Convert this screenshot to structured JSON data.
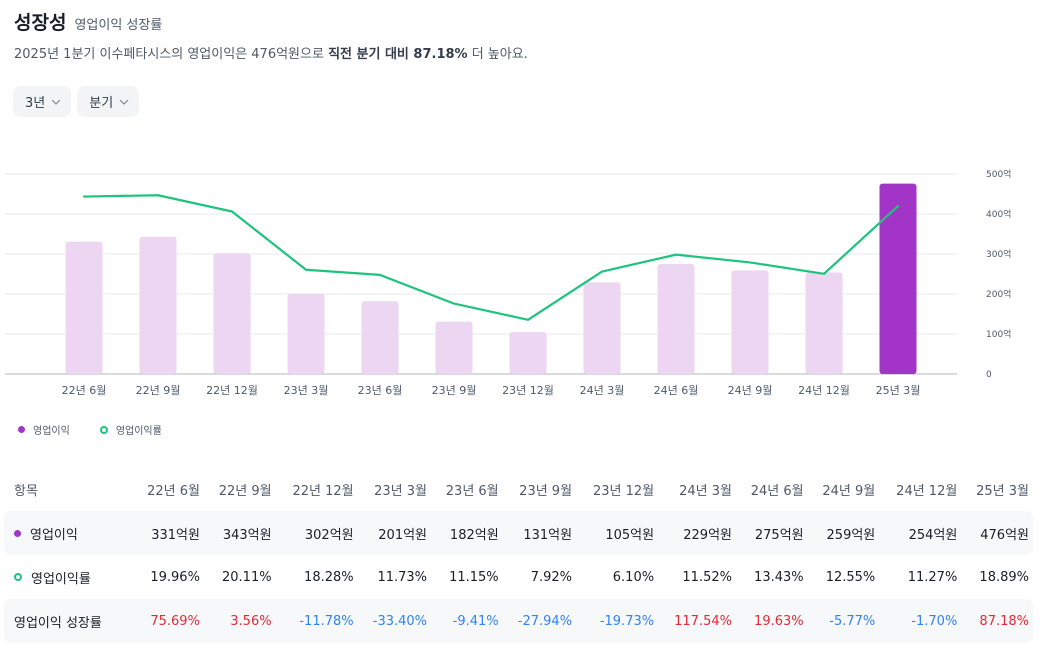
{
  "header": {
    "title": "성장성",
    "subtitle": "영업이익 성장률",
    "summary_prefix": "2025년 1분기 이수페타시스의 영업이익은 476억원으로 ",
    "summary_bold": "직전 분기 대비 87.18%",
    "summary_suffix": " 더 높아요."
  },
  "filters": {
    "period": "3년",
    "unit": "분기"
  },
  "colors": {
    "bar_light": "#ecd6f2",
    "bar_highlight": "#a234c7",
    "line": "#1ec47d",
    "positive": "#e42939",
    "negative": "#3182f6"
  },
  "chart_data": {
    "type": "bar+line",
    "categories": [
      "22년 6월",
      "22년 9월",
      "22년 12월",
      "23년 3월",
      "23년 6월",
      "23년 9월",
      "23년 12월",
      "24년 3월",
      "24년 6월",
      "24년 9월",
      "24년 12월",
      "25년 3월"
    ],
    "series": [
      {
        "name": "영업이익",
        "kind": "bar",
        "unit": "억원",
        "values": [
          331,
          343,
          302,
          201,
          182,
          131,
          105,
          229,
          275,
          259,
          254,
          476
        ]
      },
      {
        "name": "영업이익률",
        "kind": "line",
        "unit": "%",
        "values": [
          19.96,
          20.11,
          18.28,
          11.73,
          11.15,
          7.92,
          6.1,
          11.52,
          13.43,
          12.55,
          11.27,
          18.89
        ]
      }
    ],
    "y_axis": {
      "ticks": [
        "0",
        "100억",
        "200억",
        "300억",
        "400억",
        "500억"
      ],
      "ylim": [
        0,
        500
      ]
    },
    "line_axis_range": [
      0,
      22.5
    ],
    "legend": [
      "영업이익",
      "영업이익률"
    ],
    "legend_position": "bottom-left",
    "grid": true
  },
  "table": {
    "header_label": "항목",
    "columns": [
      "22년 6월",
      "22년 9월",
      "22년 12월",
      "23년 3월",
      "23년 6월",
      "23년 9월",
      "23년 12월",
      "24년 3월",
      "24년 6월",
      "24년 9월",
      "24년 12월",
      "25년 3월"
    ],
    "rows": [
      {
        "label": "영업이익",
        "marker": "dot",
        "values": [
          "331억원",
          "343억원",
          "302억원",
          "201억원",
          "182억원",
          "131억원",
          "105억원",
          "229억원",
          "275억원",
          "259억원",
          "254억원",
          "476억원"
        ]
      },
      {
        "label": "영업이익률",
        "marker": "ring",
        "values": [
          "19.96%",
          "20.11%",
          "18.28%",
          "11.73%",
          "11.15%",
          "7.92%",
          "6.10%",
          "11.52%",
          "13.43%",
          "12.55%",
          "11.27%",
          "18.89%"
        ]
      },
      {
        "label": "영업이익 성장률",
        "marker": "none",
        "values": [
          "75.69%",
          "3.56%",
          "-11.78%",
          "-33.40%",
          "-9.41%",
          "-27.94%",
          "-19.73%",
          "117.54%",
          "19.63%",
          "-5.77%",
          "-1.70%",
          "87.18%"
        ]
      }
    ]
  }
}
